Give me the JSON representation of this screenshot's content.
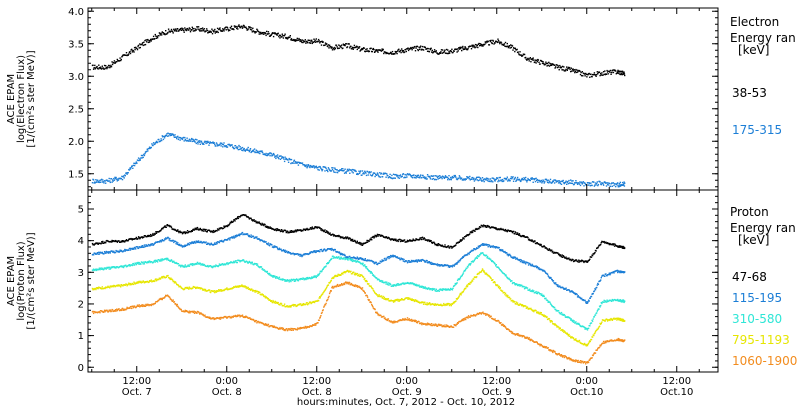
{
  "x_axis_title": "hours:minutes, Oct.  7, 2012 - Oct. 10, 2012",
  "x_ticks": [
    {
      "top": "12:00",
      "bottom": "Oct. 7",
      "t": 12
    },
    {
      "top": "0:00",
      "bottom": "Oct. 8",
      "t": 24
    },
    {
      "top": "12:00",
      "bottom": "Oct. 8",
      "t": 36
    },
    {
      "top": "0:00",
      "bottom": "Oct. 9",
      "t": 48
    },
    {
      "top": "12:00",
      "bottom": "Oct. 9",
      "t": 60
    },
    {
      "top": "0:00",
      "bottom": "Oct.10",
      "t": 72
    },
    {
      "top": "12:00",
      "bottom": "Oct.10",
      "t": 84
    }
  ],
  "chart_data": [
    {
      "type": "scatter",
      "panel": "electron",
      "ylabel": [
        "ACE EPAM",
        "log(Electron Flux)",
        "[1/(cm²s ster MeV)]"
      ],
      "ylim": [
        1.25,
        4.05
      ],
      "yticks": [
        1.5,
        2.0,
        2.5,
        3.0,
        3.5,
        4.0
      ],
      "ytick_labels": [
        "1.5",
        "2.0",
        "2.5",
        "3.0",
        "3.5",
        "4.0"
      ],
      "xlim": [
        5.5,
        89.5
      ],
      "legend_title": [
        "Electron",
        "Energy ran",
        "[keV]"
      ],
      "series": [
        {
          "name": "38-53",
          "color": "#000000",
          "t": [
            6,
            8,
            10,
            12,
            14,
            16,
            18,
            20,
            22,
            24,
            26,
            28,
            30,
            32,
            34,
            36,
            38,
            40,
            42,
            44,
            46,
            48,
            50,
            52,
            54,
            56,
            58,
            60,
            62,
            64,
            66,
            68,
            70,
            72,
            74,
            76,
            77
          ],
          "y": [
            3.15,
            3.15,
            3.3,
            3.45,
            3.6,
            3.7,
            3.72,
            3.74,
            3.7,
            3.74,
            3.78,
            3.7,
            3.65,
            3.62,
            3.55,
            3.55,
            3.45,
            3.48,
            3.42,
            3.4,
            3.38,
            3.42,
            3.45,
            3.38,
            3.4,
            3.45,
            3.5,
            3.55,
            3.45,
            3.28,
            3.22,
            3.15,
            3.1,
            3.02,
            3.06,
            3.08,
            3.05
          ]
        },
        {
          "name": "175-315",
          "color": "#1c7ed6",
          "t": [
            6,
            8,
            10,
            12,
            14,
            16,
            18,
            20,
            22,
            24,
            26,
            28,
            30,
            32,
            34,
            36,
            38,
            40,
            42,
            44,
            46,
            48,
            50,
            52,
            54,
            56,
            58,
            60,
            62,
            64,
            66,
            68,
            70,
            72,
            74,
            76,
            77
          ],
          "y": [
            1.4,
            1.4,
            1.45,
            1.7,
            1.95,
            2.12,
            2.05,
            2.0,
            1.97,
            1.95,
            1.9,
            1.85,
            1.8,
            1.72,
            1.65,
            1.6,
            1.57,
            1.55,
            1.52,
            1.5,
            1.47,
            1.48,
            1.47,
            1.45,
            1.45,
            1.44,
            1.42,
            1.42,
            1.43,
            1.42,
            1.4,
            1.38,
            1.38,
            1.35,
            1.36,
            1.34,
            1.35
          ]
        }
      ]
    },
    {
      "type": "scatter",
      "panel": "proton",
      "ylabel": [
        "ACE EPAM",
        "log(Proton Flux)",
        "[1/(cm²s ster MeV)]"
      ],
      "ylim": [
        -0.15,
        5.6
      ],
      "yticks": [
        0,
        1,
        2,
        3,
        4,
        5
      ],
      "ytick_labels": [
        "0",
        "1",
        "2",
        "3",
        "4",
        "5"
      ],
      "xlim": [
        5.5,
        89.5
      ],
      "legend_title": [
        "Proton",
        "Energy ran",
        "[keV]"
      ],
      "series": [
        {
          "name": "47-68",
          "color": "#000000",
          "t": [
            6,
            8,
            10,
            12,
            14,
            16,
            18,
            20,
            22,
            24,
            26,
            28,
            30,
            32,
            34,
            36,
            38,
            40,
            42,
            44,
            46,
            48,
            50,
            52,
            54,
            56,
            58,
            60,
            62,
            64,
            66,
            68,
            70,
            72,
            74,
            76,
            77
          ],
          "y": [
            3.9,
            4.0,
            4.0,
            4.1,
            4.2,
            4.5,
            4.25,
            4.4,
            4.3,
            4.5,
            4.85,
            4.6,
            4.4,
            4.3,
            4.35,
            4.45,
            4.2,
            4.1,
            3.9,
            4.2,
            4.05,
            4.0,
            4.1,
            3.9,
            3.8,
            4.2,
            4.5,
            4.4,
            4.3,
            4.1,
            3.85,
            3.6,
            3.4,
            3.35,
            4.0,
            3.85,
            3.8
          ]
        },
        {
          "name": "115-195",
          "color": "#1c7ed6",
          "t": [
            6,
            8,
            10,
            12,
            14,
            16,
            18,
            20,
            22,
            24,
            26,
            28,
            30,
            32,
            34,
            36,
            38,
            40,
            42,
            44,
            46,
            48,
            50,
            52,
            54,
            56,
            58,
            60,
            62,
            64,
            66,
            68,
            70,
            72,
            74,
            76,
            77
          ],
          "y": [
            3.6,
            3.65,
            3.7,
            3.8,
            3.9,
            4.1,
            3.85,
            4.0,
            3.9,
            4.05,
            4.25,
            4.1,
            3.85,
            3.65,
            3.55,
            3.7,
            3.75,
            3.5,
            3.45,
            3.3,
            3.55,
            3.35,
            3.4,
            3.25,
            3.2,
            3.6,
            3.9,
            3.8,
            3.5,
            3.3,
            3.1,
            2.6,
            2.4,
            2.05,
            2.9,
            3.05,
            3.0
          ]
        },
        {
          "name": "310-580",
          "color": "#2ee6d6",
          "t": [
            6,
            8,
            10,
            12,
            14,
            16,
            18,
            20,
            22,
            24,
            26,
            28,
            30,
            32,
            34,
            36,
            38,
            40,
            42,
            44,
            46,
            48,
            50,
            52,
            54,
            56,
            58,
            60,
            62,
            64,
            66,
            68,
            70,
            72,
            74,
            76,
            77
          ],
          "y": [
            3.1,
            3.15,
            3.2,
            3.3,
            3.35,
            3.45,
            3.2,
            3.3,
            3.2,
            3.3,
            3.4,
            3.25,
            2.9,
            2.75,
            2.8,
            2.9,
            3.5,
            3.45,
            3.3,
            2.8,
            2.6,
            2.7,
            2.55,
            2.45,
            2.5,
            3.2,
            3.65,
            3.2,
            2.7,
            2.5,
            2.3,
            1.8,
            1.5,
            1.2,
            2.1,
            2.15,
            2.1
          ]
        },
        {
          "name": "795-1193",
          "color": "#e6e600",
          "t": [
            6,
            8,
            10,
            12,
            14,
            16,
            18,
            20,
            22,
            24,
            26,
            28,
            30,
            32,
            34,
            36,
            38,
            40,
            42,
            44,
            46,
            48,
            50,
            52,
            54,
            56,
            58,
            60,
            62,
            64,
            66,
            68,
            70,
            72,
            74,
            76,
            77
          ],
          "y": [
            2.5,
            2.55,
            2.6,
            2.7,
            2.75,
            2.9,
            2.5,
            2.55,
            2.4,
            2.5,
            2.6,
            2.4,
            2.1,
            1.95,
            2.0,
            2.1,
            2.85,
            3.05,
            2.9,
            2.3,
            2.1,
            2.2,
            2.05,
            2.0,
            2.0,
            2.6,
            3.1,
            2.6,
            2.1,
            1.9,
            1.7,
            1.3,
            0.95,
            0.7,
            1.5,
            1.55,
            1.5
          ]
        },
        {
          "name": "1060-1900",
          "color": "#f28c1e",
          "t": [
            6,
            8,
            10,
            12,
            14,
            16,
            18,
            20,
            22,
            24,
            26,
            28,
            30,
            32,
            34,
            36,
            38,
            40,
            42,
            44,
            46,
            48,
            50,
            52,
            54,
            56,
            58,
            60,
            62,
            64,
            66,
            68,
            70,
            72,
            74,
            76,
            77
          ],
          "y": [
            1.75,
            1.8,
            1.85,
            1.95,
            2.0,
            2.3,
            1.8,
            1.75,
            1.55,
            1.6,
            1.65,
            1.45,
            1.3,
            1.2,
            1.25,
            1.4,
            2.55,
            2.7,
            2.5,
            1.7,
            1.45,
            1.55,
            1.4,
            1.35,
            1.3,
            1.6,
            1.75,
            1.5,
            1.1,
            0.95,
            0.7,
            0.45,
            0.25,
            0.15,
            0.8,
            0.9,
            0.85
          ]
        }
      ]
    }
  ]
}
